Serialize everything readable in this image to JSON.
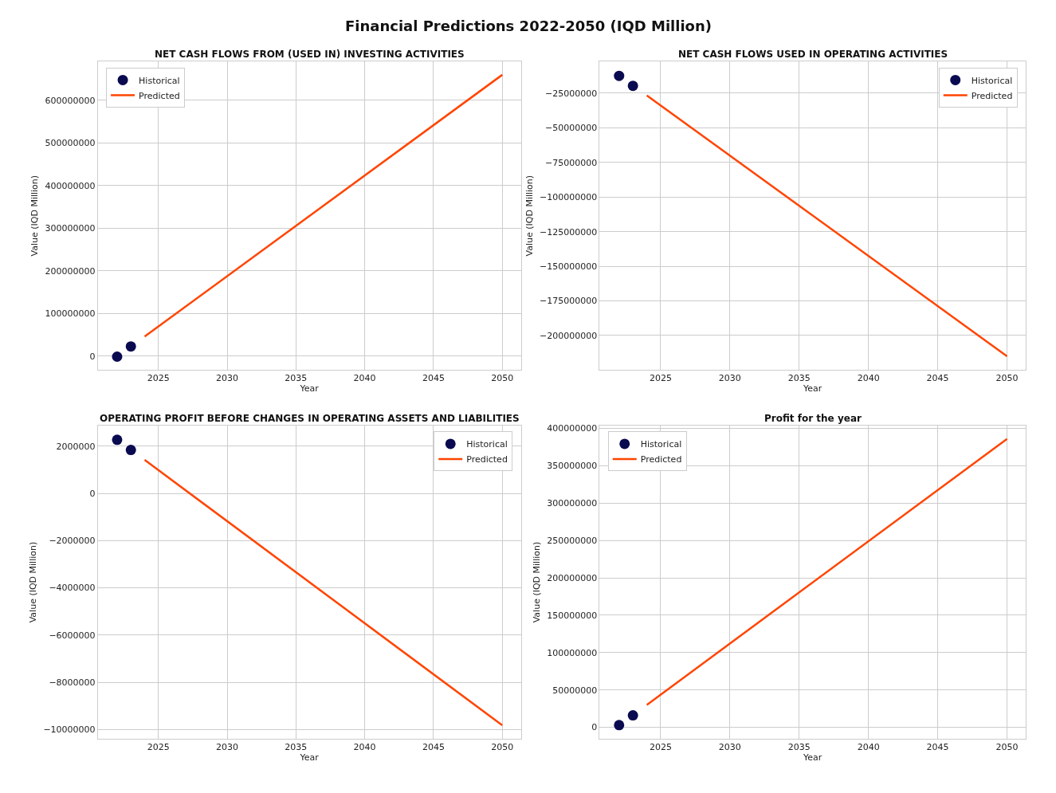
{
  "chart_data": [
    {
      "type": "scatter",
      "title": "NET CASH FLOWS FROM (USED IN) INVESTING ACTIVITIES",
      "xlabel": "Year",
      "ylabel": "Value (IQD Million)",
      "annotations": [
        "Financial Predictions 2022-2050 (IQD Million)"
      ],
      "xlim": [
        2020.6,
        2051.35
      ],
      "xticks": [
        2025,
        2030,
        2035,
        2040,
        2045,
        2050
      ],
      "ylim": [
        -32000000,
        691000000
      ],
      "yticks": [
        0,
        100000000,
        200000000,
        300000000,
        400000000,
        500000000,
        600000000
      ],
      "grid": true,
      "legend": "top left",
      "series": [
        {
          "name": "Historical",
          "marker": "circle",
          "color": "#0a0a50",
          "x": [
            2022,
            2023
          ],
          "values": [
            -1000000,
            23000000
          ]
        },
        {
          "name": "Predicted",
          "type": "line",
          "color": "#ff4500",
          "x": [
            2024,
            2050
          ],
          "values": [
            46000000,
            660000000
          ]
        }
      ]
    },
    {
      "type": "scatter",
      "title": "NET CASH FLOWS USED IN OPERATING ACTIVITIES",
      "xlabel": "Year",
      "ylabel": "Value (IQD Million)",
      "xlim": [
        2020.6,
        2051.35
      ],
      "xticks": [
        2025,
        2030,
        2035,
        2040,
        2045,
        2050
      ],
      "ylim": [
        -224800000,
        -2200000
      ],
      "yticks": [
        -200000000,
        -175000000,
        -150000000,
        -125000000,
        -100000000,
        -75000000,
        -50000000,
        -25000000
      ],
      "grid": true,
      "legend": "top right",
      "series": [
        {
          "name": "Historical",
          "marker": "circle",
          "color": "#0a0a50",
          "x": [
            2022,
            2023
          ],
          "values": [
            -12500000,
            -19700000
          ]
        },
        {
          "name": "Predicted",
          "type": "line",
          "color": "#ff4500",
          "x": [
            2024,
            2050
          ],
          "values": [
            -26600000,
            -215000000
          ]
        }
      ]
    },
    {
      "type": "scatter",
      "title": "OPERATING PROFIT BEFORE CHANGES IN OPERATING ASSETS AND LIABILITIES",
      "xlabel": "Year",
      "ylabel": "Value (IQD Million)",
      "xlim": [
        2020.6,
        2051.35
      ],
      "xticks": [
        2025,
        2030,
        2035,
        2040,
        2045,
        2050
      ],
      "ylim": [
        -10400000,
        2880000
      ],
      "yticks": [
        -10000000,
        -8000000,
        -6000000,
        -4000000,
        -2000000,
        0,
        2000000
      ],
      "grid": true,
      "legend": "top right",
      "series": [
        {
          "name": "Historical",
          "marker": "circle",
          "color": "#0a0a50",
          "x": [
            2022,
            2023
          ],
          "values": [
            2270000,
            1840000
          ]
        },
        {
          "name": "Predicted",
          "type": "line",
          "color": "#ff4500",
          "x": [
            2024,
            2050
          ],
          "values": [
            1420000,
            -9820000
          ]
        }
      ]
    },
    {
      "type": "scatter",
      "title": "Profit for the year",
      "xlabel": "Year",
      "ylabel": "Value (IQD Million)",
      "xlim": [
        2020.6,
        2051.35
      ],
      "xticks": [
        2025,
        2030,
        2035,
        2040,
        2045,
        2050
      ],
      "ylim": [
        -15600000,
        404000000
      ],
      "yticks": [
        0,
        50000000,
        100000000,
        150000000,
        200000000,
        250000000,
        300000000,
        350000000,
        400000000
      ],
      "grid": true,
      "legend": "top left",
      "series": [
        {
          "name": "Historical",
          "marker": "circle",
          "color": "#0a0a50",
          "x": [
            2022,
            2023
          ],
          "values": [
            3000000,
            16000000
          ]
        },
        {
          "name": "Predicted",
          "type": "line",
          "color": "#ff4500",
          "x": [
            2024,
            2050
          ],
          "values": [
            30000000,
            386000000
          ]
        }
      ]
    }
  ]
}
